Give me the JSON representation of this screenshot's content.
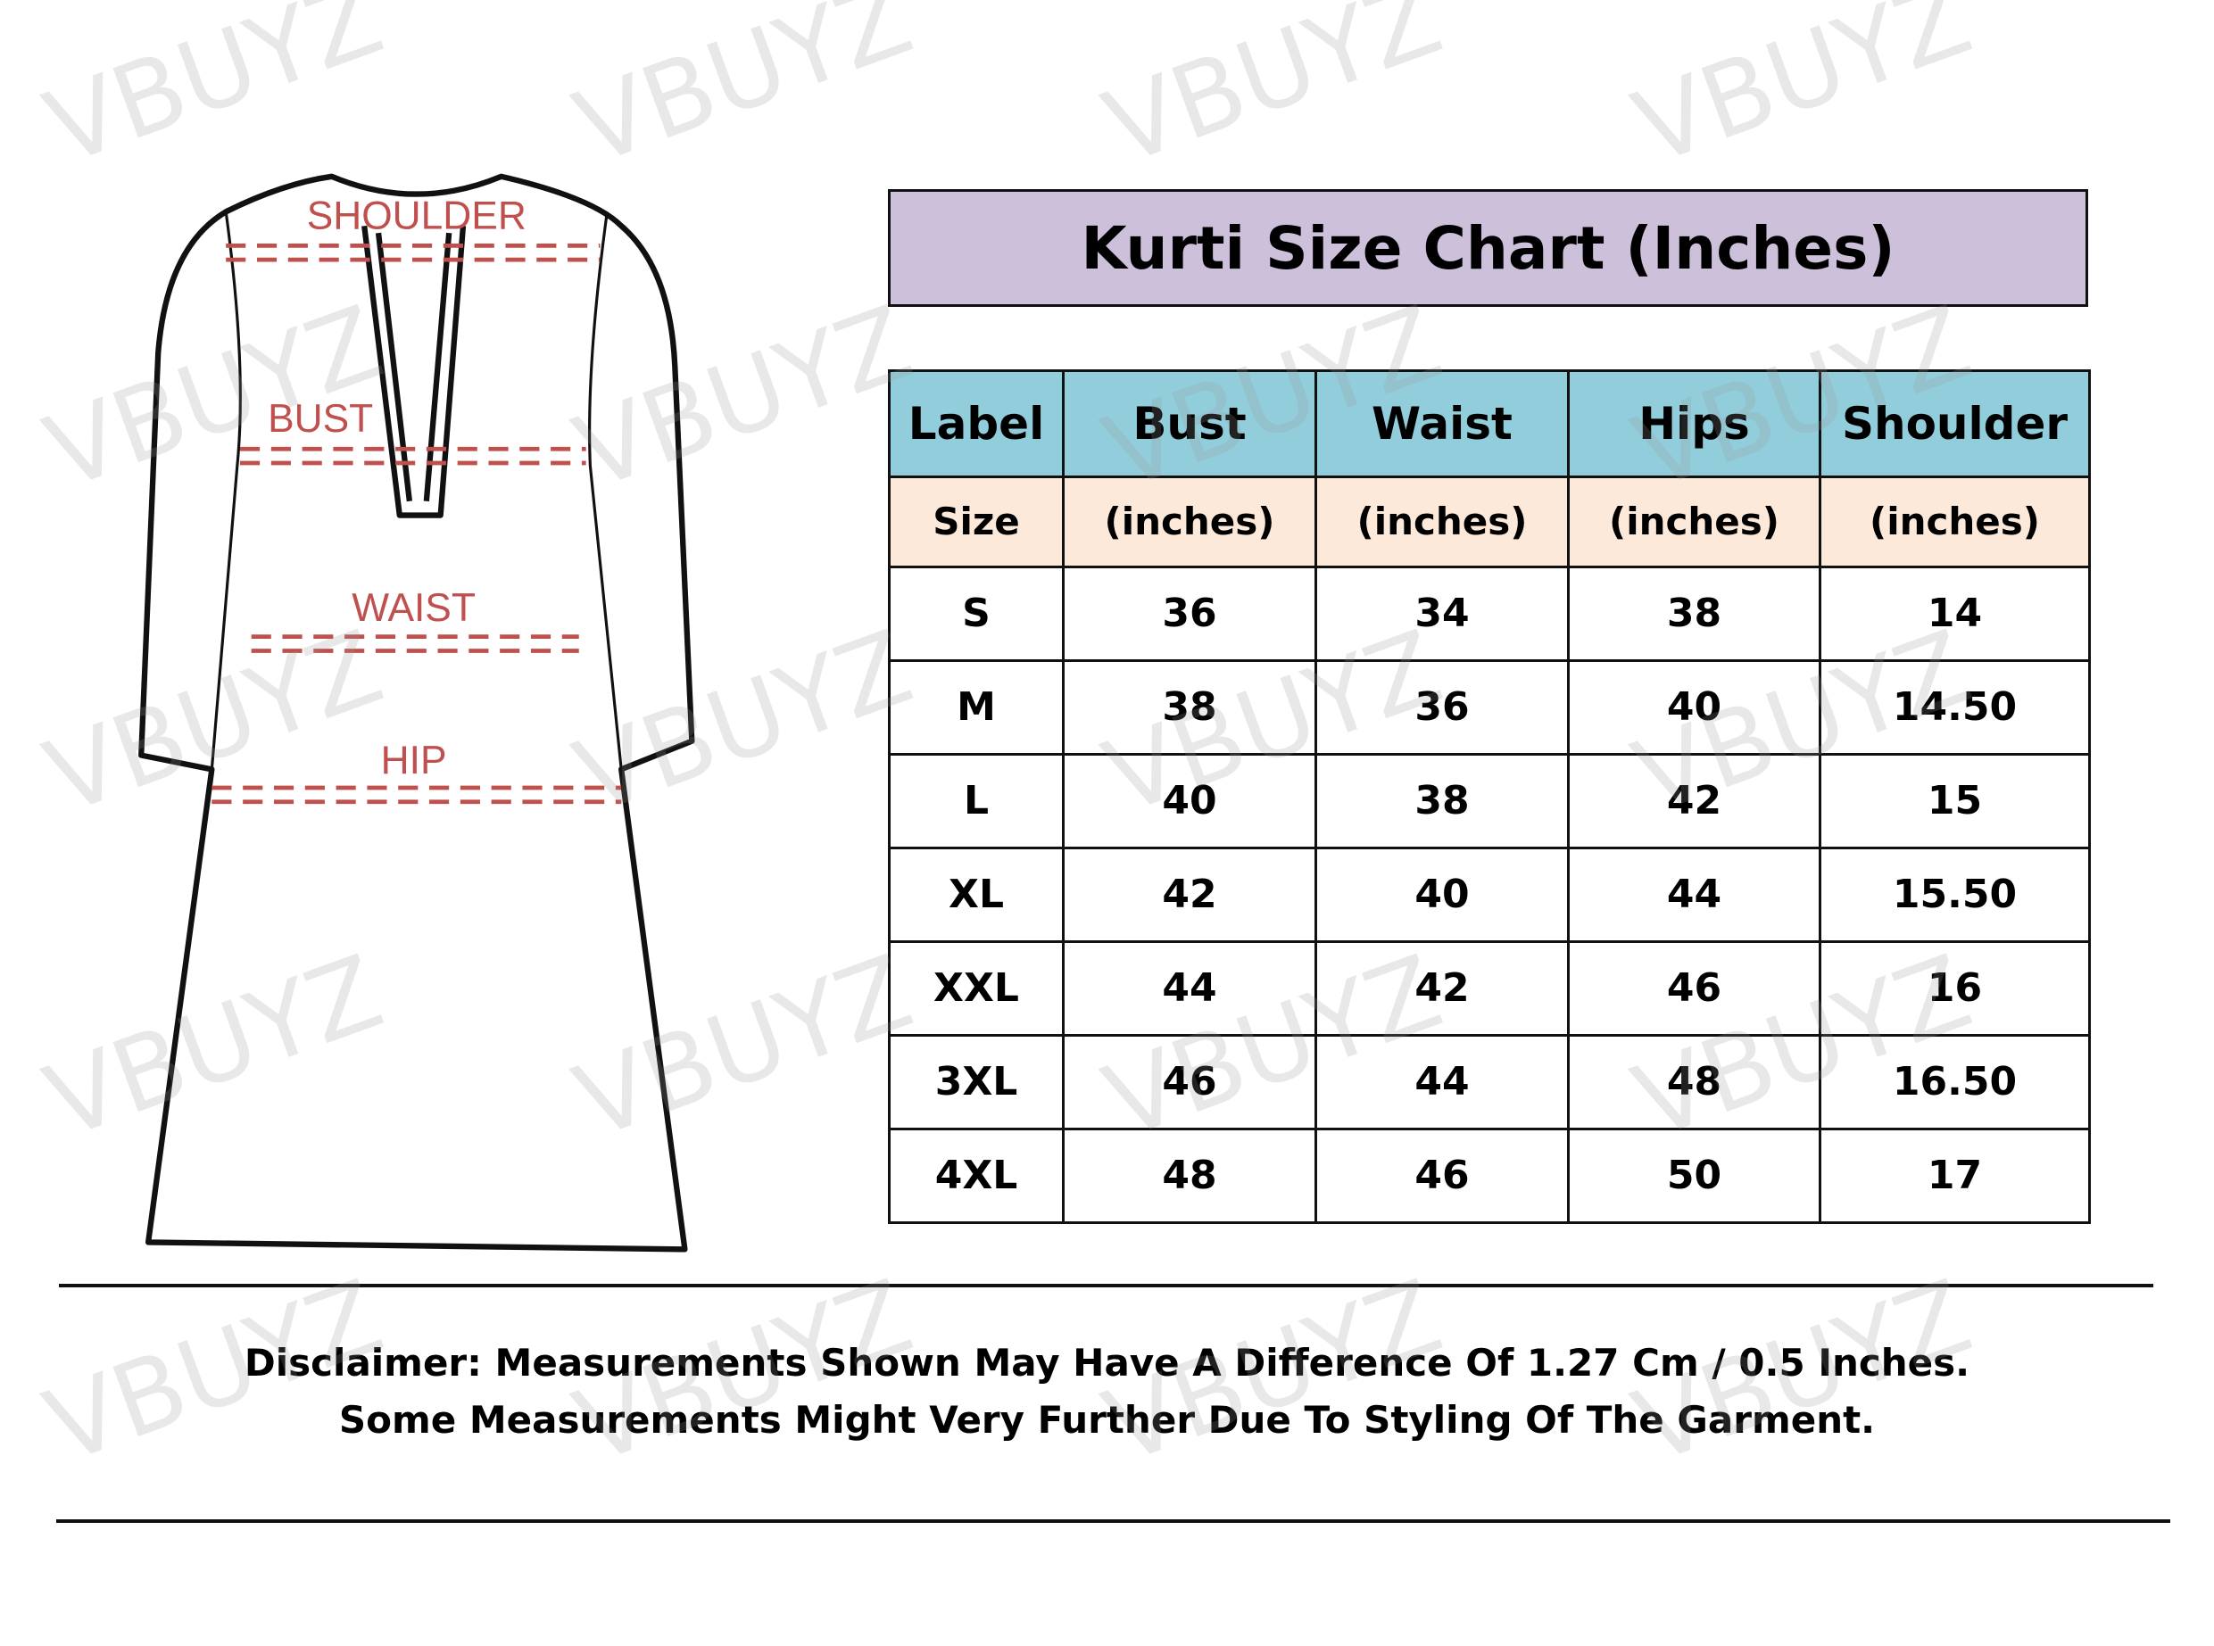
{
  "watermark": "VBUYZ",
  "diagram": {
    "labels": {
      "shoulder": "SHOULDER",
      "bust": "BUST",
      "waist": "WAIST",
      "hip": "HIP"
    },
    "label_color": "#c0504d"
  },
  "title": "Kurti Size Chart (Inches)",
  "table": {
    "header": [
      "Label",
      "Bust",
      "Waist",
      "Hips",
      "Shoulder"
    ],
    "subheader": [
      "Size",
      "(inches)",
      "(inches)",
      "(inches)",
      "(inches)"
    ],
    "rows": [
      [
        "S",
        "36",
        "34",
        "38",
        "14"
      ],
      [
        "M",
        "38",
        "36",
        "40",
        "14.50"
      ],
      [
        "L",
        "40",
        "38",
        "42",
        "15"
      ],
      [
        "XL",
        "42",
        "40",
        "44",
        "15.50"
      ],
      [
        "XXL",
        "44",
        "42",
        "46",
        "16"
      ],
      [
        "3XL",
        "46",
        "44",
        "48",
        "16.50"
      ],
      [
        "4XL",
        "48",
        "46",
        "50",
        "17"
      ]
    ]
  },
  "disclaimer": {
    "line1": "Disclaimer: Measurements Shown May Have A Difference Of 1.27 Cm / 0.5 Inches.",
    "line2": "Some Measurements Might Very Further Due To Styling Of The Garment."
  },
  "colors": {
    "title_bg": "#ccc0da",
    "header_bg": "#92cddc",
    "subheader_bg": "#fde9d9"
  }
}
